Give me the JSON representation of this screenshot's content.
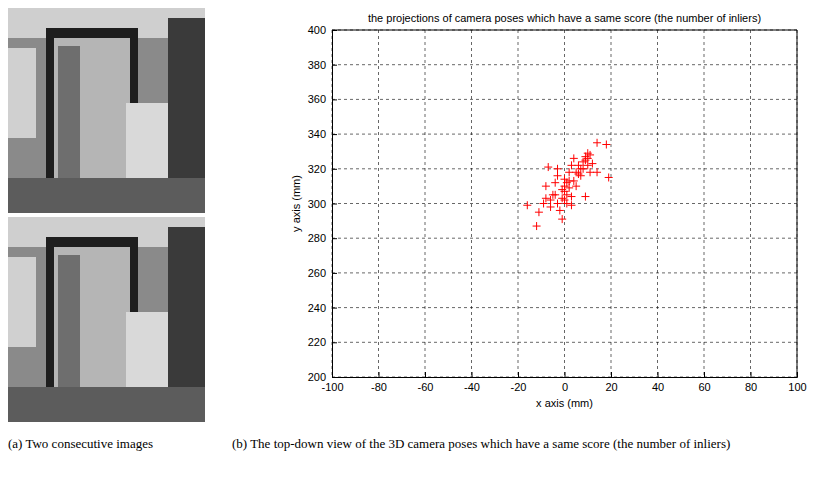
{
  "chart_data": {
    "type": "scatter",
    "title": "the projections of camera poses which have a same score (the number of inliers)",
    "x_label": "x axis (mm)",
    "y_label": "y axis (mm)",
    "x": [
      -16,
      -12,
      -11,
      -9,
      -8,
      -7,
      -8,
      -6,
      -5,
      -4,
      -3,
      -3,
      -2,
      -1,
      -1,
      0,
      0,
      1,
      1,
      2,
      2,
      2,
      3,
      3,
      4,
      4,
      5,
      6,
      7,
      8,
      8,
      9,
      9,
      10,
      10,
      11,
      11,
      9,
      12,
      14,
      14,
      18,
      19,
      -3,
      0,
      1,
      -1,
      6,
      7,
      10,
      3,
      5,
      -4,
      -6,
      0
    ],
    "values": [
      299,
      287,
      295,
      300,
      310,
      321,
      303,
      298,
      305,
      312,
      316,
      300,
      296,
      291,
      303,
      307,
      310,
      300,
      305,
      313,
      309,
      318,
      299,
      322,
      326,
      313,
      318,
      322,
      316,
      324,
      320,
      327,
      325,
      326,
      322,
      328,
      318,
      304,
      323,
      318,
      335,
      334,
      315,
      320,
      314,
      312,
      308,
      317,
      320,
      329,
      304,
      310,
      305,
      302,
      302
    ],
    "color": "#ff0000",
    "marker": "plus",
    "xlim": [
      -100,
      100
    ],
    "xticks": [
      -100,
      -80,
      -60,
      -40,
      -20,
      0,
      20,
      40,
      60,
      80,
      100
    ],
    "ylim": [
      200,
      400
    ],
    "yticks": [
      200,
      220,
      240,
      260,
      280,
      300,
      320,
      340,
      360,
      380,
      400
    ],
    "grid": true
  },
  "captions": [
    "(a) Two consecutive images",
    "(b) The top-down view of the 3D camera poses which have a same score (the number of inliers)"
  ]
}
